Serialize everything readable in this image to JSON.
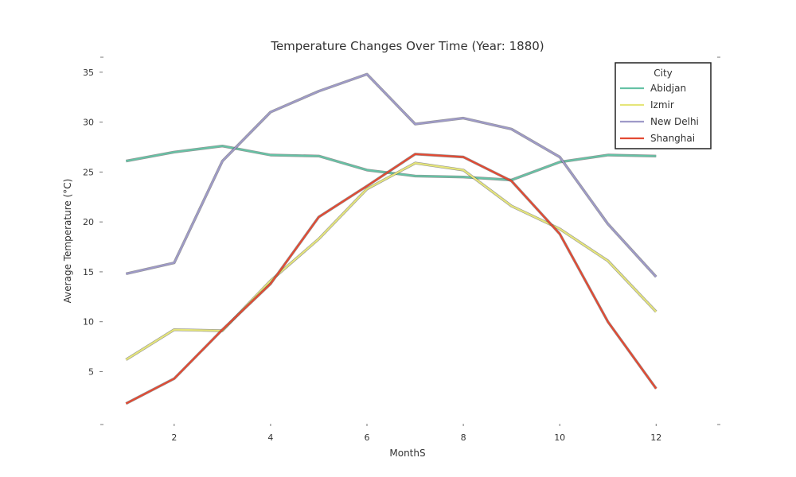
{
  "chart_data": {
    "type": "line",
    "title": "Temperature Changes Over Time (Year: 1880)",
    "xlabel": "MonthS",
    "ylabel": "Average Temperature (°C)",
    "x": [
      1,
      2,
      3,
      4,
      5,
      6,
      7,
      8,
      9,
      10,
      11,
      12
    ],
    "xlim": [
      0.5,
      13.3
    ],
    "ylim": [
      -0.3,
      36.5
    ],
    "xticks": [
      2,
      4,
      6,
      8,
      10,
      12
    ],
    "xtick_labels": [
      "2",
      "4",
      "6",
      "8",
      "10",
      "12"
    ],
    "yticks": [
      5,
      10,
      15,
      20,
      25,
      30,
      35
    ],
    "ytick_labels": [
      "5",
      "10",
      "15",
      "20",
      "25",
      "30",
      "35"
    ],
    "grid": false,
    "legend": {
      "title": "City",
      "placement": "top-right"
    },
    "series": [
      {
        "name": "Abidjan",
        "color": "#66c2a5",
        "values": [
          26.1,
          27.0,
          27.6,
          26.7,
          26.6,
          25.2,
          24.6,
          24.5,
          24.2,
          26.0,
          26.7,
          26.6
        ]
      },
      {
        "name": "Izmir",
        "color": "#e5e57a",
        "values": [
          6.2,
          9.2,
          9.1,
          14.1,
          18.3,
          23.3,
          25.9,
          25.2,
          21.6,
          19.3,
          16.1,
          11.0
        ]
      },
      {
        "name": "New Delhi",
        "color": "#9e9ac8",
        "values": [
          14.8,
          15.9,
          26.1,
          31.0,
          33.1,
          34.8,
          29.8,
          30.4,
          29.3,
          26.5,
          19.8,
          14.5
        ]
      },
      {
        "name": "Shanghai",
        "color": "#e34a33",
        "values": [
          1.8,
          4.3,
          9.2,
          13.8,
          20.5,
          23.6,
          26.8,
          26.5,
          24.1,
          18.8,
          10.0,
          3.3
        ]
      }
    ]
  }
}
